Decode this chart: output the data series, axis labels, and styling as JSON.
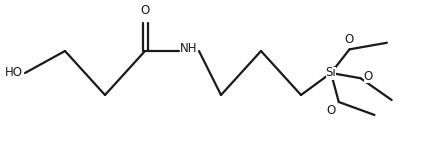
{
  "bg_color": "#ffffff",
  "line_color": "#1a1a1a",
  "line_width": 1.6,
  "font_size": 8.5,
  "figsize": [
    4.38,
    1.46
  ],
  "dpi": 100,
  "xlim": [
    0,
    438
  ],
  "ylim": [
    0,
    146
  ]
}
